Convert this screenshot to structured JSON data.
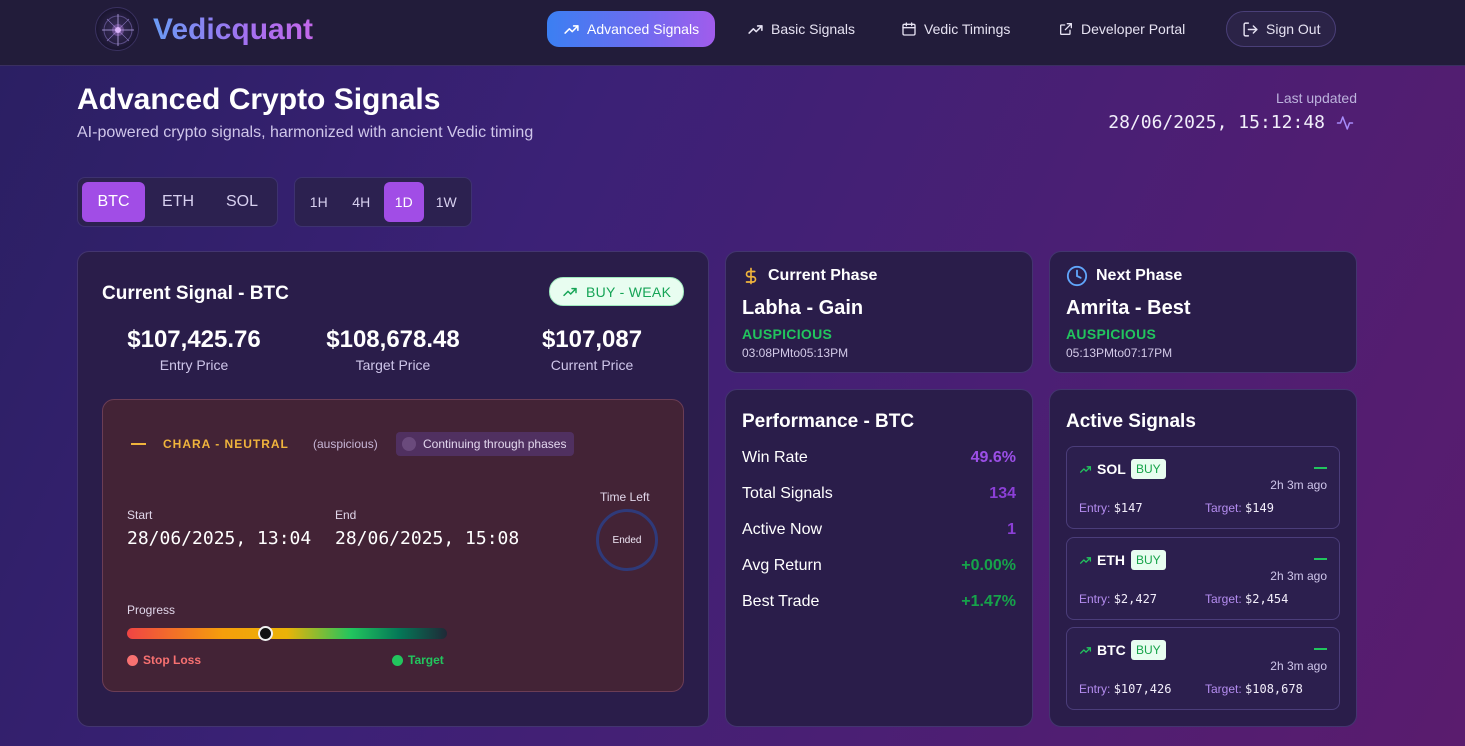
{
  "nav": {
    "brand": "Vedicquant",
    "items": [
      {
        "label": "Advanced Signals",
        "icon": "trending-up-icon",
        "active": true
      },
      {
        "label": "Basic Signals",
        "icon": "trending-up-icon",
        "active": false
      },
      {
        "label": "Vedic Timings",
        "icon": "calendar-icon",
        "active": false
      },
      {
        "label": "Developer Portal",
        "icon": "external-link-icon",
        "active": false
      }
    ],
    "signout": "Sign Out"
  },
  "header": {
    "title": "Advanced Crypto Signals",
    "subtitle": "AI-powered crypto signals, harmonized with ancient Vedic timing",
    "last_updated_label": "Last updated",
    "last_updated_value": "28/06/2025, 15:12:48"
  },
  "assets": {
    "options": [
      "BTC",
      "ETH",
      "SOL"
    ],
    "selected": "BTC"
  },
  "timeframes": {
    "options": [
      "1H",
      "4H",
      "1D",
      "1W"
    ],
    "selected": "1D"
  },
  "current_signal": {
    "title": "Current Signal - BTC",
    "badge": "BUY - WEAK",
    "entry_price": "$107,425.76",
    "entry_label": "Entry Price",
    "target_price": "$108,678.48",
    "target_label": "Target Price",
    "current_price": "$107,087",
    "current_label": "Current Price",
    "phase_label": "CHARA - NEUTRAL",
    "phase_note": "(auspicious)",
    "continuing": "Continuing through phases",
    "start_label": "Start",
    "start_value": "28/06/2025, 13:04",
    "end_label": "End",
    "end_value": "28/06/2025, 15:08",
    "time_left_label": "Time Left",
    "time_left_value": "Ended",
    "progress_label": "Progress",
    "progress_fraction": 0.43,
    "stop_loss_label": "Stop Loss",
    "target_legend_label": "Target"
  },
  "current_phase": {
    "heading": "Current Phase",
    "name": "Labha - Gain",
    "status": "AUSPICIOUS",
    "time": "03:08PMto05:13PM"
  },
  "next_phase": {
    "heading": "Next Phase",
    "name": "Amrita - Best",
    "status": "AUSPICIOUS",
    "time": "05:13PMto07:17PM"
  },
  "performance": {
    "title": "Performance - BTC",
    "rows": [
      {
        "label": "Win Rate",
        "value": "49.6%"
      },
      {
        "label": "Total Signals",
        "value": "134"
      },
      {
        "label": "Active Now",
        "value": "1"
      },
      {
        "label": "Avg Return",
        "value": "+0.00%"
      },
      {
        "label": "Best Trade",
        "value": "+1.47%"
      }
    ]
  },
  "active_signals": {
    "title": "Active Signals",
    "items": [
      {
        "symbol": "SOL",
        "action": "BUY",
        "ago": "2h 3m ago",
        "entry_label": "Entry:",
        "entry": "$147",
        "target_label": "Target:",
        "target": "$149"
      },
      {
        "symbol": "ETH",
        "action": "BUY",
        "ago": "2h 3m ago",
        "entry_label": "Entry:",
        "entry": "$2,427",
        "target_label": "Target:",
        "target": "$2,454"
      },
      {
        "symbol": "BTC",
        "action": "BUY",
        "ago": "2h 3m ago",
        "entry_label": "Entry:",
        "entry": "$107,426",
        "target_label": "Target:",
        "target": "$108,678"
      }
    ]
  },
  "colors": {
    "accent": "#a14de6",
    "buy_green": "#16a34a",
    "warning": "#f0b43c",
    "stop_loss": "#ef4444"
  }
}
